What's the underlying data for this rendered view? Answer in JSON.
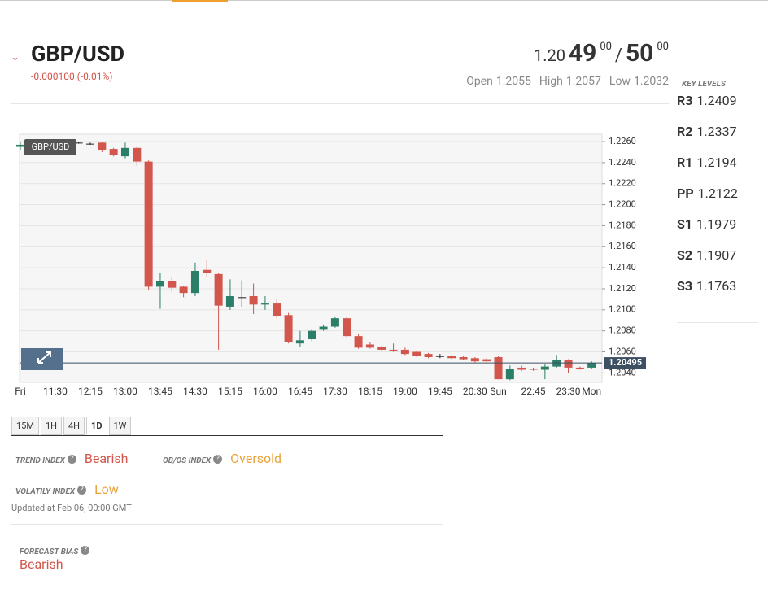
{
  "header": {
    "symbol": "GBP/USD",
    "change": "-0.000100 (-0.01%)",
    "price": {
      "bid_big": "1.20",
      "bid_pips": "49",
      "bid_frac": "00",
      "separator": "/",
      "ask_pips": "50",
      "ask_frac": "00"
    },
    "stats": [
      {
        "label": "Open",
        "value": "1.2055"
      },
      {
        "label": "High",
        "value": "1.2057"
      },
      {
        "label": "Low",
        "value": "1.2032"
      }
    ]
  },
  "key_levels": {
    "title": "KEY LEVELS",
    "levels": [
      {
        "name": "R3",
        "value": "1.2409"
      },
      {
        "name": "R2",
        "value": "1.2337"
      },
      {
        "name": "R1",
        "value": "1.2194"
      },
      {
        "name": "PP",
        "value": "1.2122"
      },
      {
        "name": "S1",
        "value": "1.1979"
      },
      {
        "name": "S2",
        "value": "1.1907"
      },
      {
        "name": "S3",
        "value": "1.1763"
      }
    ]
  },
  "chart_data": {
    "type": "candlestick",
    "title": "GBP/USD",
    "categories": [
      "Fri",
      null,
      null,
      "11:30",
      null,
      null,
      "12:15",
      null,
      null,
      "13:00",
      null,
      null,
      "13:45",
      null,
      null,
      "14:30",
      null,
      null,
      "15:15",
      null,
      null,
      "16:00",
      null,
      null,
      "16:45",
      null,
      null,
      "17:30",
      null,
      null,
      "18:15",
      null,
      null,
      "19:00",
      null,
      null,
      "19:45",
      null,
      null,
      "20:30",
      null,
      "Sun",
      null,
      null,
      "22:45",
      null,
      null,
      "23:30",
      null,
      "Mon"
    ],
    "open": [
      1.2255,
      1.2259,
      1.2259,
      1.226,
      1.2259,
      1.2259,
      1.2258,
      1.2259,
      1.2253,
      1.2246,
      1.2254,
      1.2241,
      1.2122,
      1.2127,
      1.2122,
      1.2116,
      1.2138,
      1.2134,
      1.2103,
      1.2112,
      1.2113,
      1.2105,
      1.2106,
      1.2095,
      1.2068,
      1.2072,
      1.2081,
      1.2084,
      1.2092,
      1.2075,
      1.2067,
      1.2065,
      1.2062,
      1.2062,
      1.206,
      1.2058,
      1.2056,
      1.2056,
      1.2055,
      1.2054,
      1.2053,
      1.2055,
      1.2034,
      1.2045,
      1.2044,
      1.2043,
      1.2046,
      1.2052,
      1.2045,
      1.2045
    ],
    "high": [
      1.226,
      1.2261,
      1.2261,
      1.2261,
      1.226,
      1.226,
      1.2259,
      1.226,
      1.2254,
      1.2259,
      1.2255,
      1.2242,
      1.2135,
      1.2131,
      1.2123,
      1.2145,
      1.2148,
      1.2135,
      1.2129,
      1.2128,
      1.2125,
      1.2113,
      1.211,
      1.2097,
      1.208,
      1.2082,
      1.2086,
      1.2093,
      1.2093,
      1.2077,
      1.2069,
      1.2066,
      1.2068,
      1.2064,
      1.2061,
      1.2059,
      1.2058,
      1.2057,
      1.2056,
      1.2055,
      1.2054,
      1.2056,
      1.2047,
      1.2047,
      1.2045,
      1.2048,
      1.2057,
      1.2053,
      1.2046,
      1.2051
    ],
    "low": [
      1.2252,
      1.2257,
      1.2257,
      1.2258,
      1.2258,
      1.2258,
      1.2257,
      1.225,
      1.2246,
      1.2244,
      1.2237,
      1.2119,
      1.2101,
      1.2117,
      1.2112,
      1.2113,
      1.2131,
      1.2062,
      1.21,
      1.2103,
      1.2096,
      1.21,
      1.2092,
      1.2068,
      1.2065,
      1.207,
      1.208,
      1.2083,
      1.2074,
      1.2063,
      1.2063,
      1.2061,
      1.206,
      1.2057,
      1.2055,
      1.2054,
      1.2054,
      1.2053,
      1.2052,
      1.205,
      1.205,
      1.2034,
      1.2033,
      1.2042,
      1.2042,
      1.2034,
      1.2045,
      1.204,
      1.2043,
      1.2044
    ],
    "close": [
      1.2257,
      1.2259,
      1.2259,
      1.226,
      1.2259,
      1.2259,
      1.2258,
      1.2252,
      1.2247,
      1.2254,
      1.2241,
      1.2122,
      1.2127,
      1.2121,
      1.2116,
      1.2137,
      1.2135,
      1.2104,
      1.2113,
      1.2112,
      1.2105,
      1.2106,
      1.2094,
      1.2069,
      1.2071,
      1.208,
      1.2084,
      1.2092,
      1.2075,
      1.2064,
      1.2064,
      1.2062,
      1.2061,
      1.2058,
      1.2056,
      1.2055,
      1.2056,
      1.2054,
      1.2053,
      1.2051,
      1.2051,
      1.2034,
      1.2044,
      1.2043,
      1.2043,
      1.2046,
      1.2052,
      1.2045,
      1.2044,
      1.20495
    ],
    "up_color": "#2b7f68",
    "down_color": "#d2564b",
    "doji_color": "#222222",
    "last_price": 1.20495,
    "ylim": [
      1.2031,
      1.2267
    ],
    "yticks": [
      {
        "value": 1.204,
        "label": "1.2040"
      },
      {
        "value": 1.206,
        "label": "1.2060"
      },
      {
        "value": 1.208,
        "label": "1.2080"
      },
      {
        "value": 1.21,
        "label": "1.2100"
      },
      {
        "value": 1.212,
        "label": "1.2120"
      },
      {
        "value": 1.214,
        "label": "1.2140"
      },
      {
        "value": 1.216,
        "label": "1.2160"
      },
      {
        "value": 1.218,
        "label": "1.2180"
      },
      {
        "value": 1.22,
        "label": "1.2200"
      },
      {
        "value": 1.222,
        "label": "1.2220"
      },
      {
        "value": 1.224,
        "label": "1.2240"
      },
      {
        "value": 1.226,
        "label": "1.2260"
      }
    ],
    "grid": true
  },
  "timeframes": {
    "options": [
      "15M",
      "1H",
      "4H",
      "1D",
      "1W"
    ],
    "active": "1D"
  },
  "indicators": {
    "trend": {
      "label": "TREND INDEX",
      "value": "Bearish"
    },
    "obos": {
      "label": "OB/OS INDEX",
      "value": "Oversold"
    },
    "volatility": {
      "label": "VOLATILY INDEX",
      "value": "Low"
    },
    "updated": "Updated at Feb 06, 00:00 GMT",
    "forecast": {
      "label": "FORECAST BIAS",
      "value": "Bearish"
    }
  }
}
